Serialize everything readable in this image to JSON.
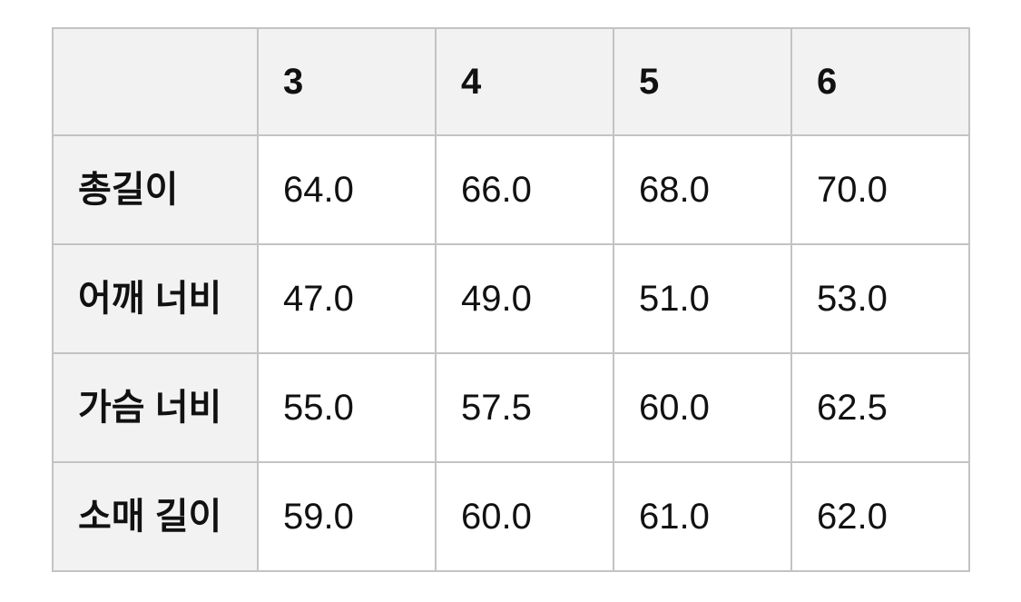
{
  "size_chart": {
    "column_headers": [
      "",
      "3",
      "4",
      "5",
      "6"
    ],
    "rows": [
      {
        "label": "총길이",
        "values": [
          "64.0",
          "66.0",
          "68.0",
          "70.0"
        ]
      },
      {
        "label": "어깨 너비",
        "values": [
          "47.0",
          "49.0",
          "51.0",
          "53.0"
        ]
      },
      {
        "label": "가슴 너비",
        "values": [
          "55.0",
          "57.5",
          "60.0",
          "62.5"
        ]
      },
      {
        "label": "소매 길이",
        "values": [
          "59.0",
          "60.0",
          "61.0",
          "62.0"
        ]
      }
    ]
  },
  "chart_data": {
    "type": "table",
    "title": "",
    "columns": [
      "3",
      "4",
      "5",
      "6"
    ],
    "row_headers": [
      "총길이",
      "어깨 너비",
      "가슴 너비",
      "소매 길이"
    ],
    "values": [
      [
        64.0,
        66.0,
        68.0,
        70.0
      ],
      [
        47.0,
        49.0,
        51.0,
        53.0
      ],
      [
        55.0,
        57.5,
        60.0,
        62.5
      ],
      [
        59.0,
        60.0,
        61.0,
        62.0
      ]
    ]
  },
  "colors": {
    "header_bg": "#f2f2f2",
    "cell_bg": "#ffffff",
    "border": "#c3c3c5",
    "text": "#111111",
    "page_bg": "#ffffff"
  }
}
